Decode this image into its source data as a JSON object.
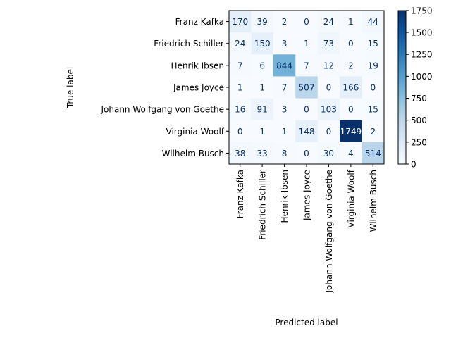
{
  "chart_data": {
    "type": "heatmap",
    "title": "",
    "xlabel": "Predicted label",
    "ylabel": "True label",
    "labels": [
      "Franz Kafka",
      "Friedrich Schiller",
      "Henrik Ibsen",
      "James Joyce",
      "Johann Wolfgang von Goethe",
      "Virginia Woolf",
      "Wilhelm Busch"
    ],
    "matrix": [
      [
        170,
        39,
        2,
        0,
        24,
        1,
        44
      ],
      [
        24,
        150,
        3,
        1,
        73,
        0,
        15
      ],
      [
        7,
        6,
        844,
        7,
        12,
        2,
        19
      ],
      [
        1,
        1,
        7,
        507,
        0,
        166,
        0
      ],
      [
        16,
        91,
        3,
        0,
        103,
        0,
        15
      ],
      [
        0,
        1,
        1,
        148,
        0,
        1749,
        2
      ],
      [
        38,
        33,
        8,
        0,
        30,
        4,
        514
      ]
    ],
    "colorbar": {
      "min": 0,
      "max": 1749,
      "ticks": [
        0,
        250,
        500,
        750,
        1000,
        1250,
        1500,
        1750
      ],
      "colormap": "Blues"
    },
    "grid": false
  }
}
